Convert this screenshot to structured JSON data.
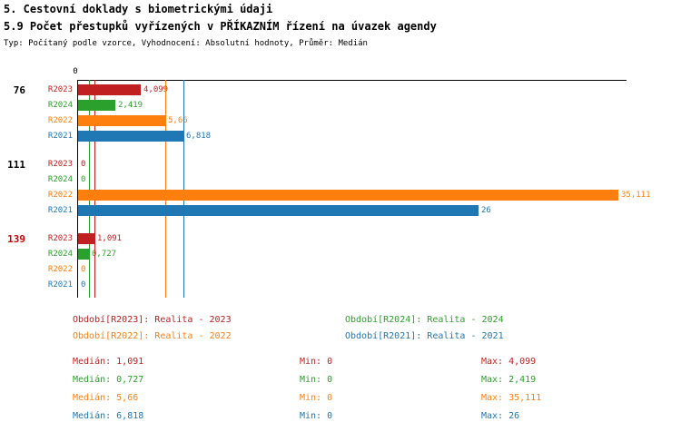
{
  "header": {
    "title1": "5. Cestovní doklady s biometrickými údaji",
    "title2": "5.9 Počet přestupků vyřízených v PŘÍKAZNÍM řízení na úvazek agendy",
    "subtitle": "Typ: Počítaný podle vzorce, Vyhodnocení: Absolutní hodnoty, Průměr: Medián"
  },
  "chart_data": {
    "type": "bar",
    "orientation": "horizontal",
    "title": "5.9 Počet přestupků vyřízených v PŘÍKAZNÍM řízení na úvazek agendy",
    "axis": {
      "zero_label": "0",
      "xlim": [
        0,
        35.6
      ],
      "grid": false
    },
    "series": [
      {
        "id": "R2023",
        "name": "Realita - 2023",
        "color": "#C02020",
        "median": 1.091
      },
      {
        "id": "R2024",
        "name": "Realita - 2024",
        "color": "#2CA02C",
        "median": 0.727
      },
      {
        "id": "R2022",
        "name": "Realita - 2022",
        "color": "#FF7F0E",
        "median": 5.66
      },
      {
        "id": "R2021",
        "name": "Realita - 2021",
        "color": "#1F77B4",
        "median": 6.818
      }
    ],
    "groups": [
      {
        "label": "76",
        "label_color": "#000000",
        "values": [
          4.099,
          2.419,
          5.66,
          6.818
        ],
        "value_labels": [
          "4,099",
          "2,419",
          "5,66",
          "6,818"
        ]
      },
      {
        "label": "111",
        "label_color": "#000000",
        "values": [
          0,
          0,
          35.111,
          26
        ],
        "value_labels": [
          "0",
          "0",
          "35,111",
          "26"
        ]
      },
      {
        "label": "139",
        "label_color": "#CC0000",
        "values": [
          1.091,
          0.727,
          0,
          0
        ],
        "value_labels": [
          "1,091",
          "0,727",
          "0",
          "0"
        ]
      }
    ]
  },
  "legend": [
    {
      "text": "Období[R2023]: Realita - 2023",
      "color": "#C02020"
    },
    {
      "text": "Období[R2024]: Realita - 2024",
      "color": "#2CA02C"
    },
    {
      "text": "Období[R2022]: Realita - 2022",
      "color": "#FF7F0E"
    },
    {
      "text": "Období[R2021]: Realita - 2021",
      "color": "#1F77B4"
    }
  ],
  "stats": [
    {
      "median": "Medián: 1,091",
      "min": "Min: 0",
      "max": "Max: 4,099",
      "color": "#C02020"
    },
    {
      "median": "Medián: 0,727",
      "min": "Min: 0",
      "max": "Max: 2,419",
      "color": "#2CA02C"
    },
    {
      "median": "Medián: 5,66",
      "min": "Min: 0",
      "max": "Max: 35,111",
      "color": "#FF7F0E"
    },
    {
      "median": "Medián: 6,818",
      "min": "Min: 0",
      "max": "Max: 26",
      "color": "#1F77B4"
    }
  ]
}
